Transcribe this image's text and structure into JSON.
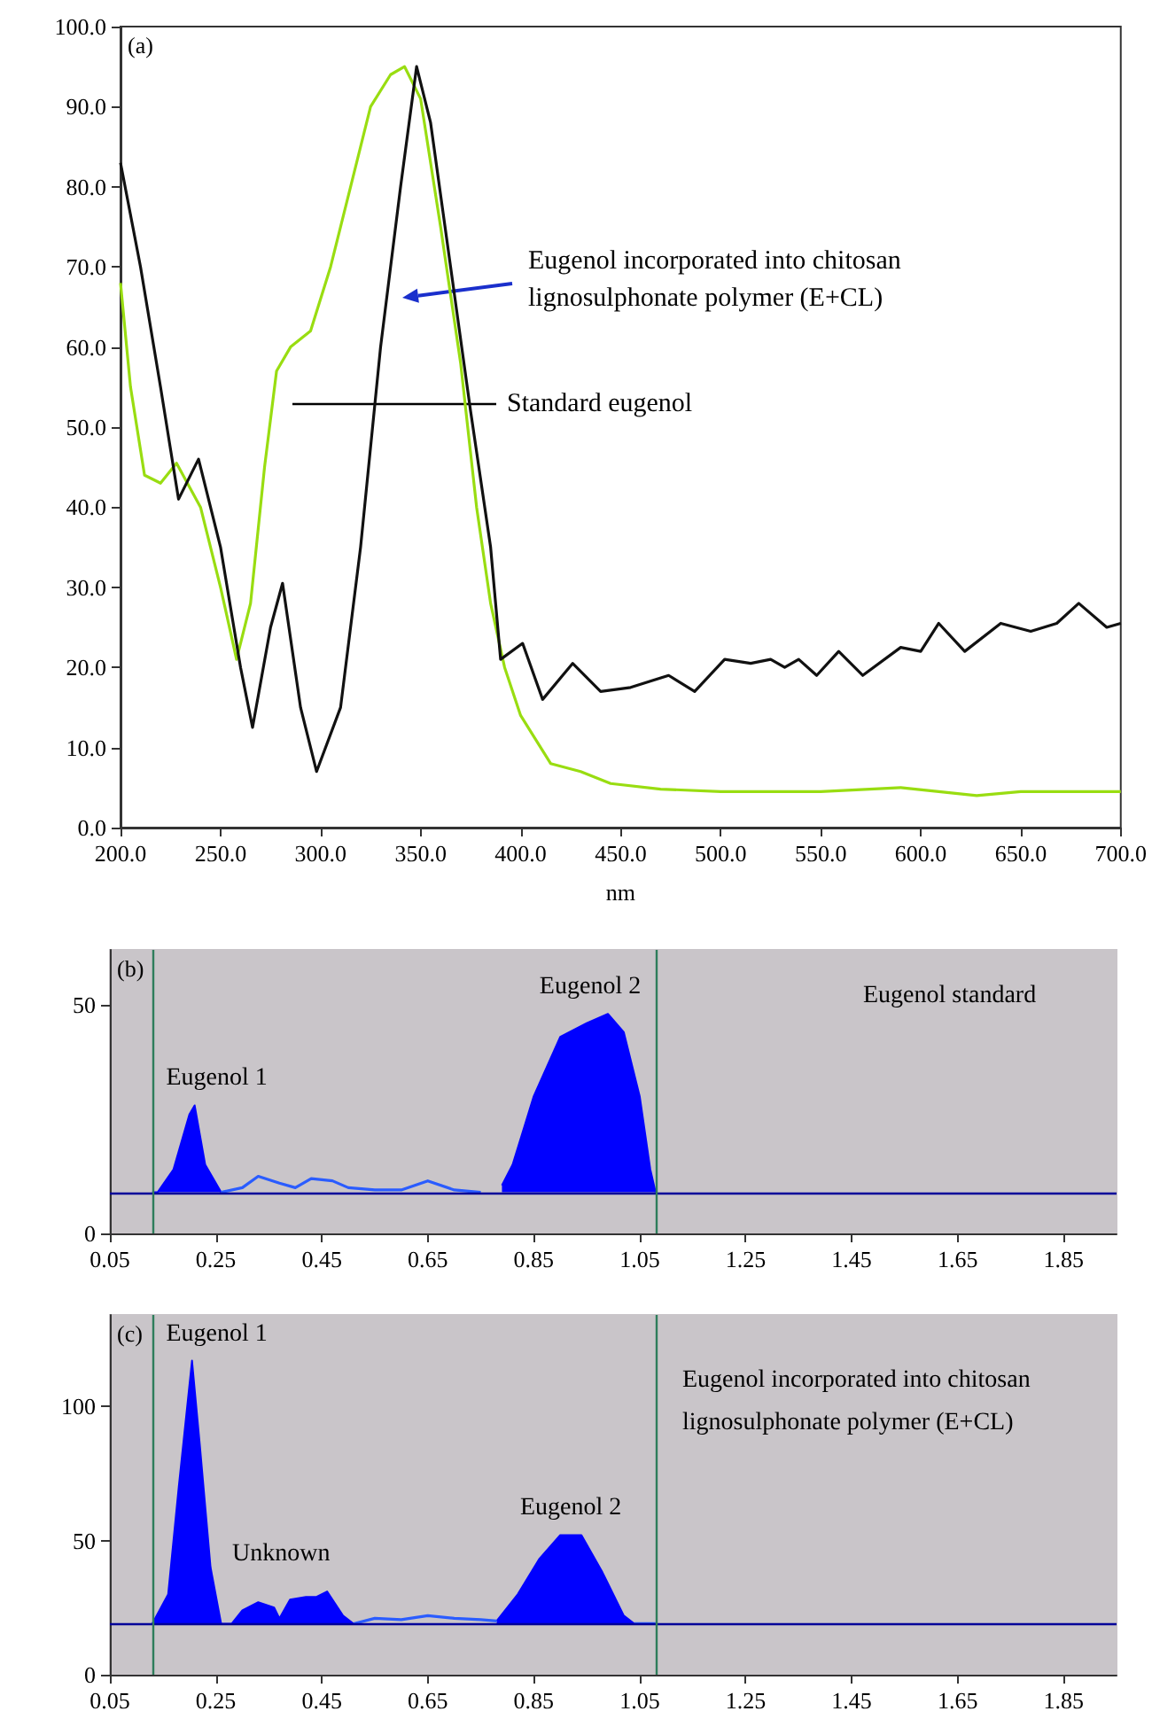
{
  "chart_data": [
    {
      "type": "line",
      "xlabel": "nm",
      "xlim": [
        200,
        700
      ],
      "ylim": [
        0,
        100
      ],
      "xticks": [
        {
          "value": 200,
          "label": "200.0"
        },
        {
          "value": 250,
          "label": "250.0"
        },
        {
          "value": 300,
          "label": "300.0"
        },
        {
          "value": 350,
          "label": "350.0"
        },
        {
          "value": 400,
          "label": "400.0"
        },
        {
          "value": 450,
          "label": "450.0"
        },
        {
          "value": 500,
          "label": "500.0"
        },
        {
          "value": 550,
          "label": "550.0"
        },
        {
          "value": 600,
          "label": "600.0"
        },
        {
          "value": 650,
          "label": "650.0"
        },
        {
          "value": 700,
          "label": "700.0"
        }
      ],
      "yticks": [
        {
          "value": 0,
          "label": "0.0"
        },
        {
          "value": 10,
          "label": "10.0"
        },
        {
          "value": 20,
          "label": "20.0"
        },
        {
          "value": 30,
          "label": "30.0"
        },
        {
          "value": 40,
          "label": "40.0"
        },
        {
          "value": 50,
          "label": "50.0"
        },
        {
          "value": 60,
          "label": "60.0"
        },
        {
          "value": 70,
          "label": "70.0"
        },
        {
          "value": 80,
          "label": "80.0"
        },
        {
          "value": 90,
          "label": "90.0"
        },
        {
          "value": 100,
          "label": "100.0"
        }
      ],
      "series": [
        {
          "color": "#99dd11",
          "x": [
            200,
            205,
            212,
            220,
            228,
            240,
            250,
            258,
            265,
            272,
            278,
            285,
            295,
            305,
            315,
            325,
            335,
            342,
            350,
            360,
            370,
            378,
            385,
            392,
            400,
            415,
            430,
            445,
            470,
            500,
            550,
            590,
            628,
            650,
            700
          ],
          "values": [
            68,
            55,
            44,
            43,
            45.5,
            40,
            30,
            21,
            28,
            45,
            57,
            60,
            62,
            70,
            80,
            90,
            94,
            95,
            91,
            75,
            58,
            40,
            28,
            20,
            14,
            8,
            7,
            5.5,
            4.8,
            4.5,
            4.5,
            5,
            4,
            4.5,
            4.5
          ]
        },
        {
          "color": "#111111",
          "x": [
            200,
            210,
            220,
            229,
            239,
            250,
            260,
            266,
            275,
            281,
            290,
            298,
            310,
            320,
            330,
            340,
            348,
            355,
            365,
            375,
            385,
            390,
            401,
            411,
            426,
            440,
            455,
            474,
            487,
            502,
            515,
            525,
            532,
            539,
            548,
            559,
            571,
            590,
            600,
            609,
            622,
            640,
            655,
            668,
            679,
            693,
            700
          ],
          "values": [
            83,
            70,
            55,
            41,
            46,
            35,
            20,
            12.5,
            25,
            30.5,
            15,
            7,
            15,
            35,
            60,
            80,
            95,
            88,
            70,
            52,
            35,
            21,
            23,
            16,
            20.5,
            17,
            17.5,
            19,
            17,
            21,
            20.5,
            21,
            20,
            21,
            19,
            22,
            19,
            22.5,
            22,
            25.5,
            22,
            25.5,
            24.5,
            25.5,
            28,
            25,
            25.5
          ]
        }
      ],
      "annotations": [
        "(a)",
        "Eugenol incorporated into chitosan lignosulphonate polymer (E+CL)",
        "Standard eugenol"
      ]
    },
    {
      "type": "area",
      "xlim": [
        0.05,
        1.95
      ],
      "ylim": [
        0,
        62
      ],
      "xticks": [
        0.05,
        0.25,
        0.45,
        0.65,
        0.85,
        1.05,
        1.25,
        1.45,
        1.65,
        1.85
      ],
      "yticks": [
        0,
        50
      ],
      "x": [
        0.13,
        0.14,
        0.17,
        0.2,
        0.21,
        0.23,
        0.26,
        0.3,
        0.33,
        0.37,
        0.4,
        0.43,
        0.47,
        0.5,
        0.55,
        0.6,
        0.65,
        0.7,
        0.75,
        0.79,
        0.81,
        0.85,
        0.9,
        0.95,
        0.99,
        1.02,
        1.05,
        1.07,
        1.08
      ],
      "series": [
        {
          "color": "#0000ff",
          "values": [
            9,
            9,
            14,
            26,
            28,
            15,
            9,
            null,
            null,
            null,
            null,
            null,
            null,
            null,
            null,
            null,
            null,
            null,
            null,
            10.5,
            15,
            30,
            43,
            46,
            48,
            44,
            30,
            14,
            9
          ]
        },
        {
          "type": "line",
          "color": "#2a5cff",
          "values": [
            null,
            null,
            null,
            null,
            null,
            null,
            9,
            10,
            12.5,
            11,
            10,
            12,
            11.5,
            10,
            9.5,
            9.5,
            11.5,
            9.5,
            9,
            null,
            null,
            null,
            null,
            null,
            null,
            null,
            null,
            null,
            null
          ]
        }
      ],
      "ref_lines": [
        {
          "axis": "y",
          "value": 9,
          "color": "#000099"
        },
        {
          "axis": "x",
          "value": 0.13,
          "color": "#2e7d5b"
        },
        {
          "axis": "x",
          "value": 1.08,
          "color": "#2e7d5b"
        }
      ],
      "annotations": [
        "(b)",
        {
          "text": "Eugenol 1",
          "x": 0.205,
          "y": 28
        },
        {
          "text": "Eugenol 2",
          "x": 0.99,
          "y": 48
        },
        "Eugenol standard"
      ]
    },
    {
      "type": "area",
      "xlim": [
        0.05,
        1.95
      ],
      "ylim": [
        0,
        134
      ],
      "xticks": [
        0.05,
        0.25,
        0.45,
        0.65,
        0.85,
        1.05,
        1.25,
        1.45,
        1.65,
        1.85
      ],
      "yticks": [
        0,
        50,
        100
      ],
      "x": [
        0.13,
        0.16,
        0.18,
        0.205,
        0.22,
        0.24,
        0.26,
        0.28,
        0.3,
        0.33,
        0.36,
        0.37,
        0.39,
        0.42,
        0.44,
        0.46,
        0.49,
        0.51,
        0.55,
        0.6,
        0.65,
        0.7,
        0.75,
        0.78,
        0.82,
        0.86,
        0.9,
        0.94,
        0.98,
        1.02,
        1.04,
        1.08
      ],
      "series": [
        {
          "color": "#0000ff",
          "values": [
            19,
            30,
            70,
            117,
            85,
            40,
            19,
            19,
            24,
            27,
            25,
            21,
            28,
            29,
            29,
            31,
            22,
            19,
            null,
            null,
            null,
            null,
            null,
            20,
            30,
            43,
            52,
            52,
            38,
            22,
            19,
            null
          ]
        },
        {
          "type": "line",
          "color": "#2a5cff",
          "values": [
            null,
            null,
            null,
            null,
            null,
            null,
            null,
            null,
            null,
            null,
            null,
            null,
            null,
            null,
            null,
            null,
            null,
            19,
            21,
            20.5,
            22,
            21,
            20.5,
            20,
            null,
            null,
            null,
            null,
            null,
            null,
            19,
            19
          ]
        }
      ],
      "ref_lines": [
        {
          "axis": "y",
          "value": 19,
          "color": "#000099"
        },
        {
          "axis": "x",
          "value": 0.13,
          "color": "#2e7d5b"
        },
        {
          "axis": "x",
          "value": 1.08,
          "color": "#2e7d5b"
        }
      ],
      "annotations": [
        "(c)",
        {
          "text": "Eugenol 1",
          "x": 0.205,
          "y": 117
        },
        "Unknown",
        {
          "text": "Eugenol 2",
          "x": 0.92,
          "y": 52
        },
        "Eugenol incorporated into chitosan lignosulphonate polymer (E+CL)"
      ]
    }
  ]
}
